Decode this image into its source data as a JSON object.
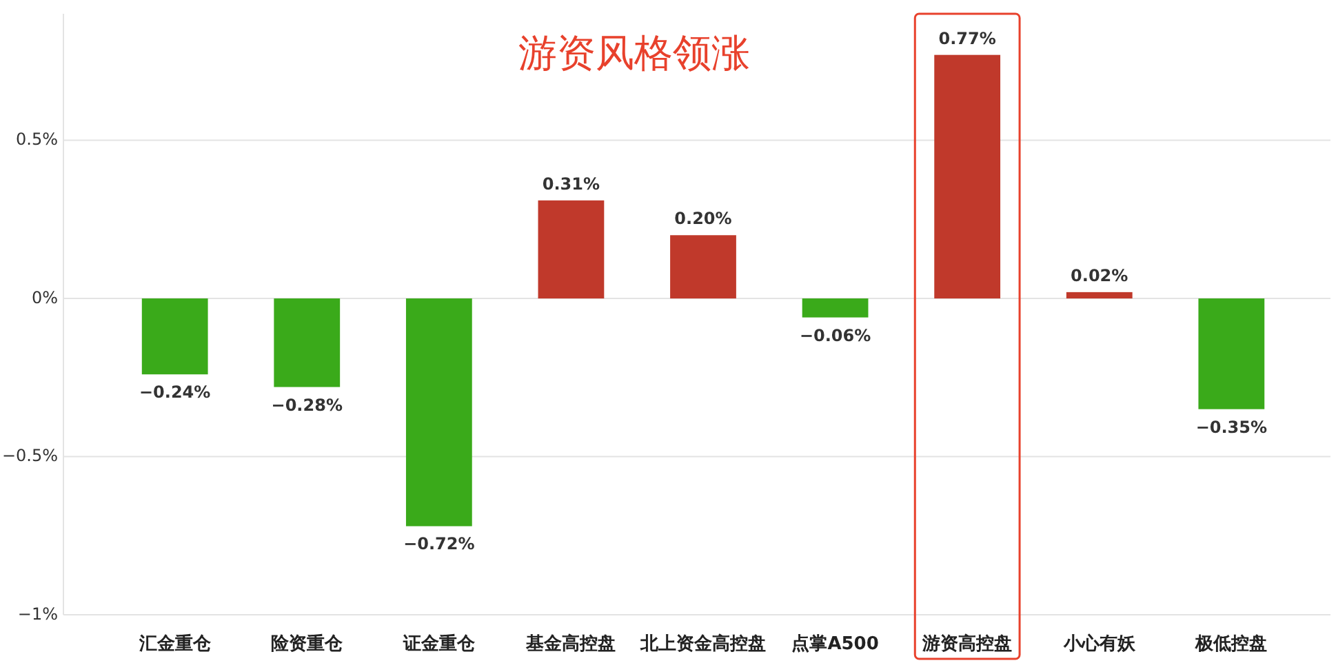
{
  "chart_data": {
    "type": "bar",
    "title": "游资风格领涨",
    "categories": [
      "汇金重仓",
      "险资重仓",
      "证金重仓",
      "基金高控盘",
      "北上资金高控盘",
      "点掌A500",
      "游资高控盘",
      "小心有妖",
      "极低控盘"
    ],
    "values": [
      -0.24,
      -0.28,
      -0.72,
      0.31,
      0.2,
      -0.06,
      0.77,
      0.02,
      -0.35
    ],
    "colors": [
      "#3aaa1a",
      "#3aaa1a",
      "#3aaa1a",
      "#c0392b",
      "#c0392b",
      "#3aaa1a",
      "#c0392b",
      "#c0392b",
      "#3aaa1a"
    ],
    "value_labels": [
      "−0.24%",
      "−0.28%",
      "−0.72%",
      "0.31%",
      "0.20%",
      "−0.06%",
      "0.77%",
      "0.02%",
      "−0.35%"
    ],
    "ylim": [
      -1,
      0.9
    ],
    "yticks": [
      {
        "value": 0.5,
        "label": "0.5%"
      },
      {
        "value": 0,
        "label": "0%"
      },
      {
        "value": -0.5,
        "label": "−0.5%"
      },
      {
        "value": -1,
        "label": "−1%"
      }
    ],
    "grid": "y"
  }
}
